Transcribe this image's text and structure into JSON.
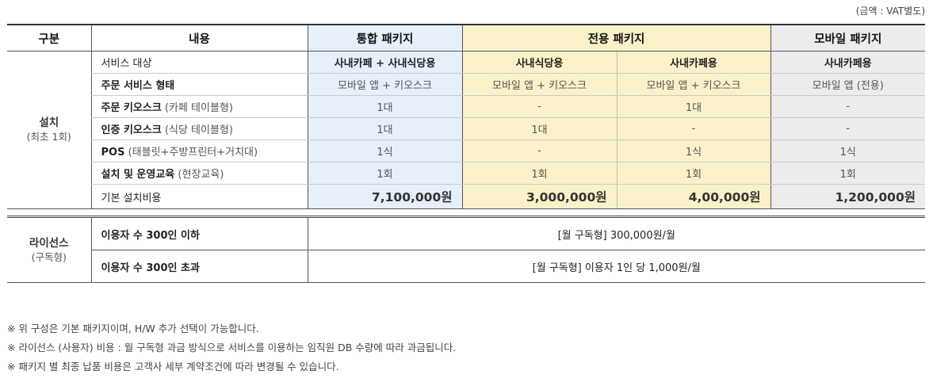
{
  "unit_note": "(금액 : VAT별도)",
  "headers": {
    "category": "구분",
    "content": "내용",
    "integrated": "통합 패키지",
    "dedicated": "전용 패키지",
    "mobile": "모바일 패키지"
  },
  "install": {
    "cat_main": "설치",
    "cat_sub": "(최초 1회)",
    "service_target": {
      "label": "서비스 대상",
      "integrated": "사내카페 + 사내식당용",
      "ded_a": "사내식당용",
      "ded_b": "사내카페용",
      "mobile": "사내카페용"
    },
    "order_form": {
      "label": "주문 서비스 형태",
      "integrated": "모바일 앱 + 키오스크",
      "ded_a": "모바일 앱 + 키오스크",
      "ded_b": "모바일 앱 + 키오스크",
      "mobile": "모바일 앱 (전용)"
    },
    "order_kiosk": {
      "label": "주문 키오스크",
      "label_sub": "(카페 테이블형)",
      "integrated": "1대",
      "ded_a": "-",
      "ded_b": "1대",
      "mobile": "-"
    },
    "auth_kiosk": {
      "label": "인증 키오스크",
      "label_sub": "(식당 테이블형)",
      "integrated": "1대",
      "ded_a": "1대",
      "ded_b": "-",
      "mobile": "-"
    },
    "pos": {
      "label": "POS",
      "label_sub": "(태블릿+주방프린터+거치대)",
      "integrated": "1식",
      "ded_a": "-",
      "ded_b": "1식",
      "mobile": "1식"
    },
    "training": {
      "label": "설치 및 운영교육",
      "label_sub": "(현장교육)",
      "integrated": "1회",
      "ded_a": "1회",
      "ded_b": "1회",
      "mobile": "1회"
    },
    "base_cost": {
      "label": "기본 설치비용",
      "integrated": "7,100,000원",
      "ded_a": "3,000,000원",
      "ded_b": "4,00,000원",
      "mobile": "1,200,000원"
    }
  },
  "license": {
    "cat_main": "라이선스",
    "cat_sub": "(구독형)",
    "row1": {
      "label": "이용자 수 300인 이하",
      "value": "[월 구독형] 300,000원/월"
    },
    "row2": {
      "label": "이용자 수 300인 초과",
      "value": "[월 구독형] 이용자 1인 당 1,000원/월"
    }
  },
  "footnotes": [
    "※ 위 구성은 기본 패키지이며, H/W 추가 선택이 가능합니다.",
    "※ 라이선스 (사용자) 비용 : 월 구독형 과금 방식으로 서비스를 이용하는 임직원 DB 수량에 따라 과금됩니다.",
    "※ 패키지 별 최종 납품 비용은 고객사 세부 계약조건에 따라 변경될 수 있습니다."
  ],
  "colors": {
    "integrated_bg": "#e6effa",
    "dedicated_bg": "#fbf1c9",
    "mobile_bg": "#ececec"
  }
}
